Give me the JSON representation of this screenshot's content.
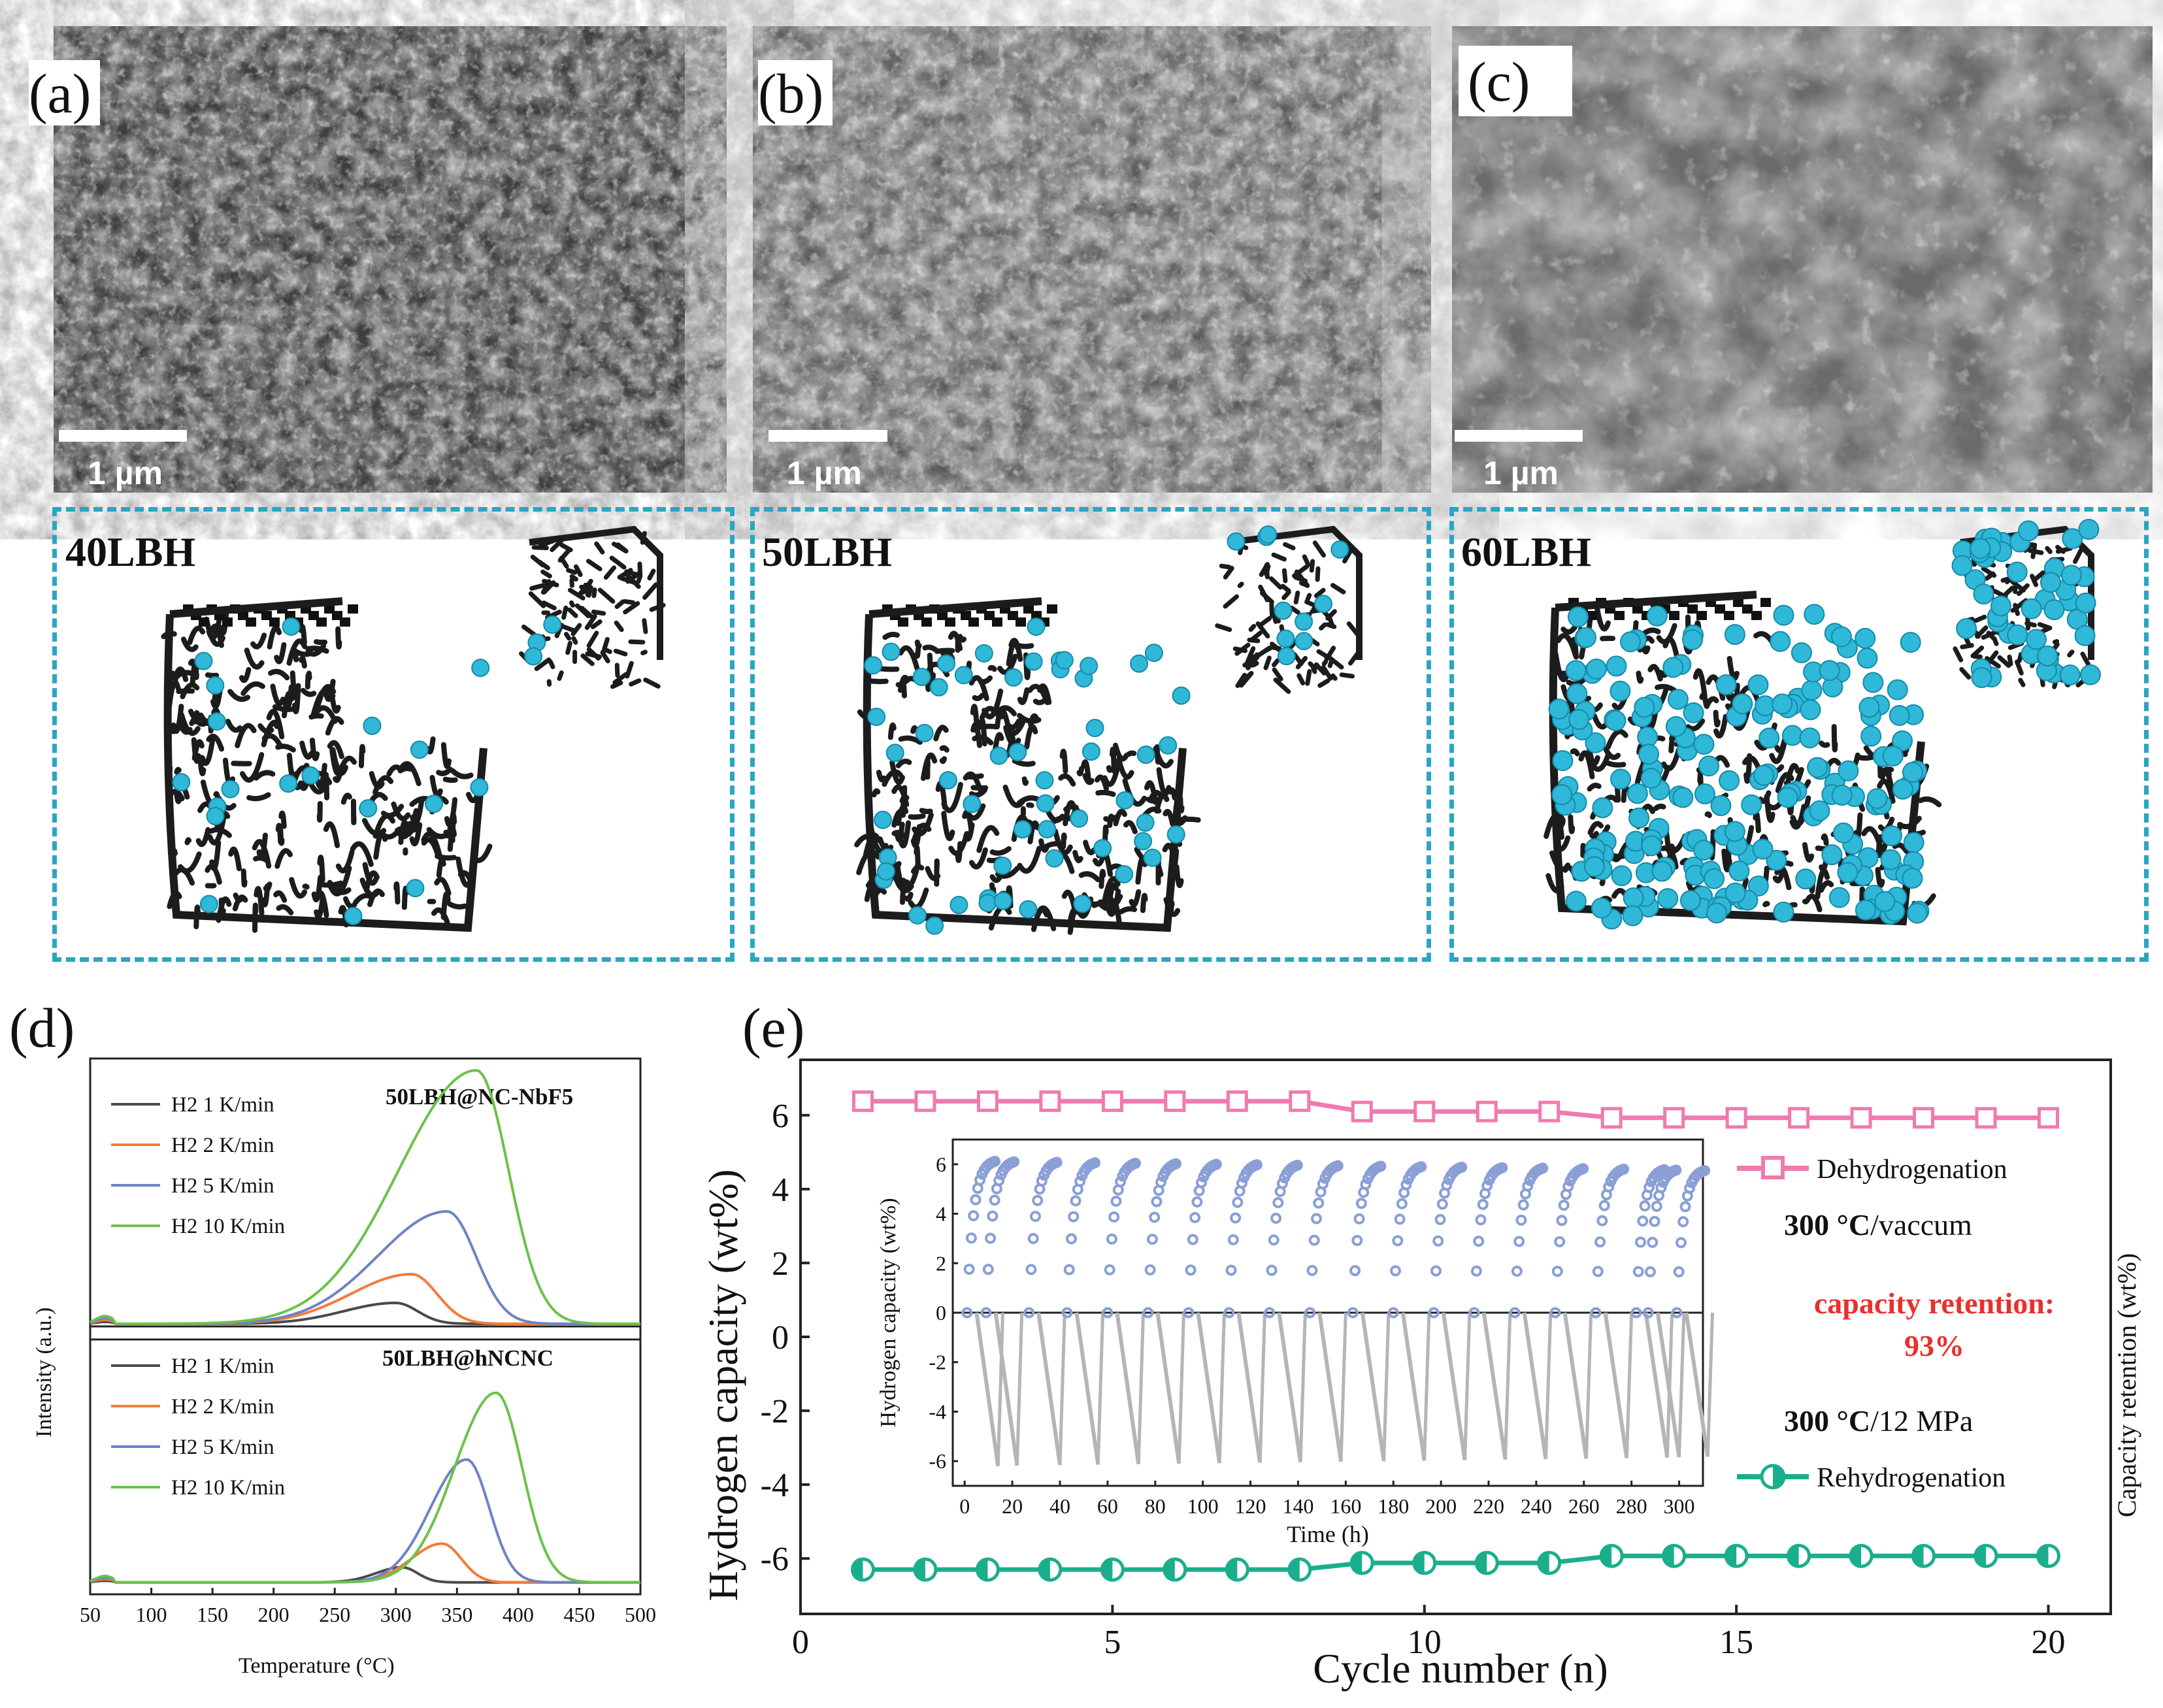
{
  "panels": {
    "a": {
      "label": "(a)",
      "scale": "1 µm",
      "sample": "40LBH"
    },
    "b": {
      "label": "(b)",
      "scale": "1 µm",
      "sample": "50LBH"
    },
    "c": {
      "label": "(c)",
      "scale": "1 µm",
      "sample": "60LBH"
    },
    "d": {
      "label": "(d)"
    },
    "e": {
      "label": "(e)"
    }
  },
  "colors": {
    "frame": "#2aa6c0",
    "particle": "#2fb8d8",
    "carbon": "#1c1c1c",
    "k1": "#4a4a4a",
    "k2": "#f47b3a",
    "k5": "#6d84c4",
    "k10": "#6cc24a",
    "dehyd": "#f07ab0",
    "rehyd": "#1bae8c",
    "inset_pos": "#8a9fd6",
    "inset_neg": "#b5b5b5",
    "retention": "#e8312f"
  },
  "chart_data": [
    {
      "type": "line",
      "panel": "d-top",
      "title": "50LBH@NC-NbF5",
      "xlabel": "Temperature (°C)",
      "ylabel": "Intensity (a.u.)",
      "xlim": [
        50,
        500
      ],
      "xticks": [
        "50",
        "100",
        "150",
        "200",
        "250",
        "300",
        "350",
        "400",
        "450",
        "500"
      ],
      "series": [
        {
          "name": "H2 1 K/min",
          "peak_x": 300,
          "peak_y": 0.08
        },
        {
          "name": "H2 2 K/min",
          "peak_x": 313,
          "peak_y": 0.19
        },
        {
          "name": "H2 5 K/min",
          "peak_x": 342,
          "peak_y": 0.43
        },
        {
          "name": "H2 10 K/min",
          "peak_x": 366,
          "peak_y": 0.97
        }
      ]
    },
    {
      "type": "line",
      "panel": "d-bottom",
      "title": "50LBH@hNCNC",
      "xlabel": "Temperature (°C)",
      "ylabel": "Intensity (a.u.)",
      "xlim": [
        50,
        500
      ],
      "series": [
        {
          "name": "H2 1 K/min",
          "peak_x": 305,
          "peak_y": 0.07
        },
        {
          "name": "H2 2 K/min",
          "peak_x": 338,
          "peak_y": 0.18
        },
        {
          "name": "H2 5 K/min",
          "peak_x": 358,
          "peak_y": 0.57
        },
        {
          "name": "H2 10 K/min",
          "peak_x": 382,
          "peak_y": 0.88
        }
      ]
    },
    {
      "type": "line",
      "panel": "e",
      "xlabel": "Cycle number (n)",
      "ylabel": "Hydrogen capacity (wt%)",
      "right_label": "Capacity retention (wt%)",
      "xlim": [
        0,
        21
      ],
      "ylim": [
        -7.5,
        7.5
      ],
      "xticks": [
        0,
        5,
        10,
        15,
        20
      ],
      "yticks": [
        6,
        4,
        2,
        0,
        -2,
        -4,
        -6
      ],
      "x": [
        1,
        2,
        3,
        4,
        5,
        6,
        7,
        8,
        9,
        10,
        11,
        12,
        13,
        14,
        15,
        16,
        17,
        18,
        19,
        20
      ],
      "series": [
        {
          "name": "Dehydrogenation",
          "values": [
            6.38,
            6.38,
            6.38,
            6.38,
            6.38,
            6.38,
            6.38,
            6.38,
            6.1,
            6.1,
            6.1,
            6.1,
            5.93,
            5.93,
            5.93,
            5.93,
            5.93,
            5.93,
            5.93,
            5.93
          ]
        },
        {
          "name": "Rehydrogenation",
          "values": [
            -6.3,
            -6.3,
            -6.3,
            -6.3,
            -6.3,
            -6.3,
            -6.3,
            -6.3,
            -6.12,
            -6.12,
            -6.12,
            -6.12,
            -5.93,
            -5.93,
            -5.93,
            -5.93,
            -5.93,
            -5.93,
            -5.93,
            -5.93
          ]
        }
      ],
      "annotations": {
        "dehyd_cond_bold": "300 °C",
        "dehyd_cond_rest": "/vaccum",
        "retention_line1": "capacity retention:",
        "retention_line2": "93%",
        "rehyd_cond_bold": "300 °C",
        "rehyd_cond_rest": "/12 MPa"
      },
      "inset": {
        "xlabel": "Time (h)",
        "ylabel": "Hydrogen capacity (wt%)",
        "xlim": [
          -5,
          310
        ],
        "ylim": [
          -7,
          7
        ],
        "xticks": [
          0,
          20,
          40,
          60,
          80,
          100,
          120,
          140,
          160,
          180,
          200,
          220,
          240,
          260,
          280,
          300
        ],
        "yticks": [
          6,
          4,
          2,
          0,
          -2,
          -4,
          -6
        ],
        "cycle_starts": [
          1,
          9,
          27,
          43,
          60,
          77,
          94,
          111,
          128,
          145,
          163,
          180,
          197,
          214,
          231,
          248,
          265,
          282,
          287,
          299
        ]
      }
    }
  ]
}
